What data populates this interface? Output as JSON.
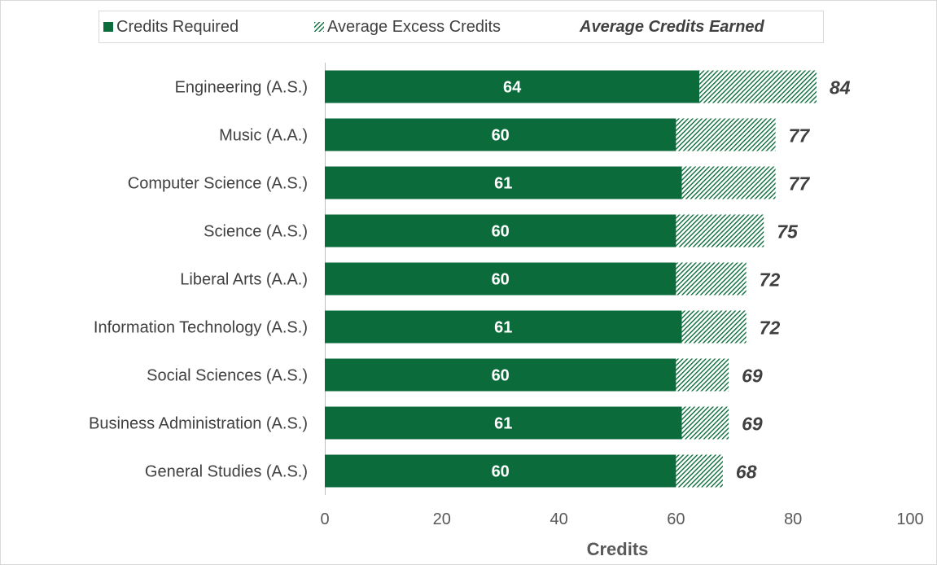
{
  "chart_data": {
    "type": "bar",
    "orientation": "horizontal",
    "stacked": true,
    "categories": [
      "Engineering (A.S.)",
      "Music (A.A.)",
      "Computer Science (A.S.)",
      "Science (A.S.)",
      "Liberal Arts (A.A.)",
      "Information Technology (A.S.)",
      "Social Sciences (A.S.)",
      "Business Administration (A.S.)",
      "General Studies (A.S.)"
    ],
    "series": [
      {
        "name": "Credits Required",
        "values": [
          64,
          60,
          61,
          60,
          60,
          61,
          60,
          61,
          60
        ],
        "color": "#0b6b3a"
      },
      {
        "name": "Average Excess Credits",
        "values": [
          20,
          17,
          16,
          15,
          12,
          11,
          9,
          8,
          8
        ],
        "color": "#0b6b3a",
        "pattern": "diagonal-hatch"
      }
    ],
    "totals_label": "Average Credits Earned",
    "totals": [
      84,
      77,
      77,
      75,
      72,
      72,
      69,
      69,
      68
    ],
    "xlabel": "Credits",
    "ylabel": "",
    "xlim": [
      0,
      100
    ],
    "xticks": [
      0,
      20,
      40,
      60,
      80,
      100
    ],
    "legend_position": "top",
    "grid": false
  }
}
